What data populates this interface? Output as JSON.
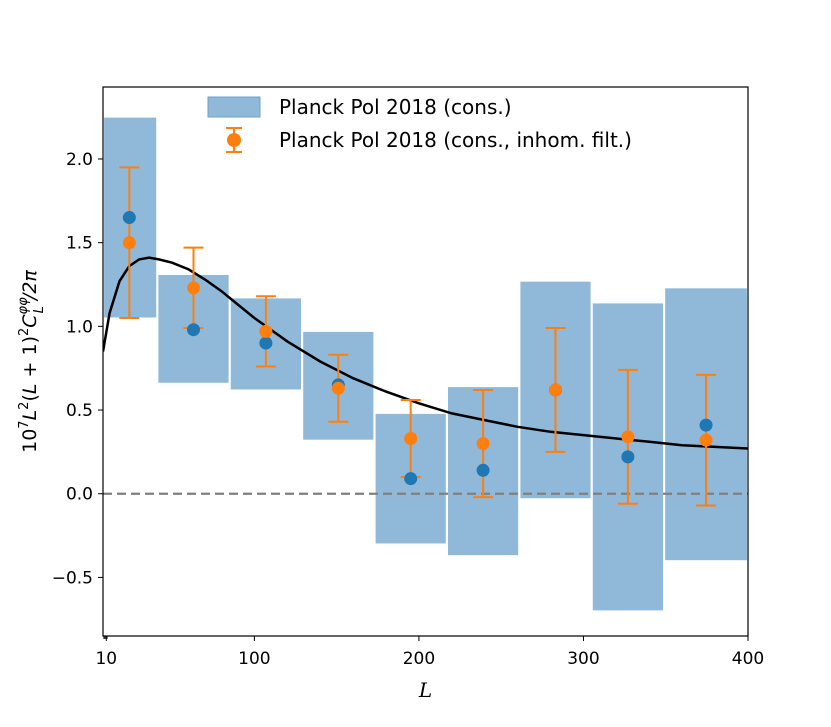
{
  "chart_data": {
    "type": "scatter",
    "xlabel": "L",
    "ylabel": "10⁷L²(L + 1)²C_L^{φφ}/2π",
    "xlim": [
      8,
      400
    ],
    "ylim": [
      -0.85,
      2.43
    ],
    "x_ticks": [
      {
        "value": 10,
        "label": "10"
      },
      {
        "value": 100,
        "label": "100"
      },
      {
        "value": 200,
        "label": "200"
      },
      {
        "value": 300,
        "label": "300"
      },
      {
        "value": 400,
        "label": "400"
      }
    ],
    "y_ticks": [
      {
        "value": -0.5,
        "label": "−0.5"
      },
      {
        "value": 0.0,
        "label": "0.0"
      },
      {
        "value": 0.5,
        "label": "0.5"
      },
      {
        "value": 1.0,
        "label": "1.0"
      },
      {
        "value": 1.5,
        "label": "1.5"
      },
      {
        "value": 2.0,
        "label": "2.0"
      }
    ],
    "bins": {
      "name": "Planck Pol 2018 (cons.)",
      "color": "#8fb8d9",
      "edges": [
        8,
        41,
        85,
        129,
        173,
        217,
        261,
        305,
        349,
        400
      ],
      "low": [
        1.05,
        0.66,
        0.62,
        0.32,
        -0.3,
        -0.37,
        -0.03,
        -0.7,
        -0.4
      ],
      "high": [
        2.25,
        1.31,
        1.17,
        0.97,
        0.48,
        0.64,
        1.27,
        1.14,
        1.23
      ],
      "centers": [
        24,
        63,
        107,
        151,
        195,
        239,
        283,
        327,
        374.5
      ],
      "values": [
        1.65,
        0.98,
        0.9,
        0.65,
        0.09,
        0.14,
        0.62,
        0.22,
        0.41
      ],
      "marker_color": "#1f77b4"
    },
    "errorbar_series": {
      "name": "Planck Pol 2018 (cons., inhom. filt.)",
      "color": "#ff7f0e",
      "x": [
        24,
        63,
        107,
        151,
        195,
        239,
        283,
        327,
        374.5
      ],
      "y": [
        1.5,
        1.23,
        0.97,
        0.63,
        0.33,
        0.3,
        0.62,
        0.34,
        0.32
      ],
      "err": [
        0.45,
        0.24,
        0.21,
        0.2,
        0.23,
        0.32,
        0.37,
        0.4,
        0.39
      ]
    },
    "theory_curve": {
      "color": "#000000",
      "x": [
        8,
        12,
        18,
        24,
        30,
        36,
        42,
        50,
        60,
        70,
        80,
        90,
        100,
        120,
        140,
        160,
        180,
        200,
        220,
        240,
        260,
        280,
        300,
        320,
        340,
        360,
        380,
        400
      ],
      "y": [
        0.85,
        1.08,
        1.27,
        1.36,
        1.4,
        1.41,
        1.4,
        1.38,
        1.34,
        1.28,
        1.21,
        1.13,
        1.05,
        0.91,
        0.79,
        0.69,
        0.61,
        0.54,
        0.48,
        0.44,
        0.4,
        0.37,
        0.35,
        0.33,
        0.31,
        0.29,
        0.28,
        0.27
      ]
    },
    "reference_line": {
      "y": 0.0,
      "color": "#808080",
      "style": "dashed"
    },
    "legend": {
      "position": "top-center",
      "entries": [
        "Planck Pol 2018 (cons.)",
        "Planck Pol 2018 (cons., inhom. filt.)"
      ]
    }
  }
}
